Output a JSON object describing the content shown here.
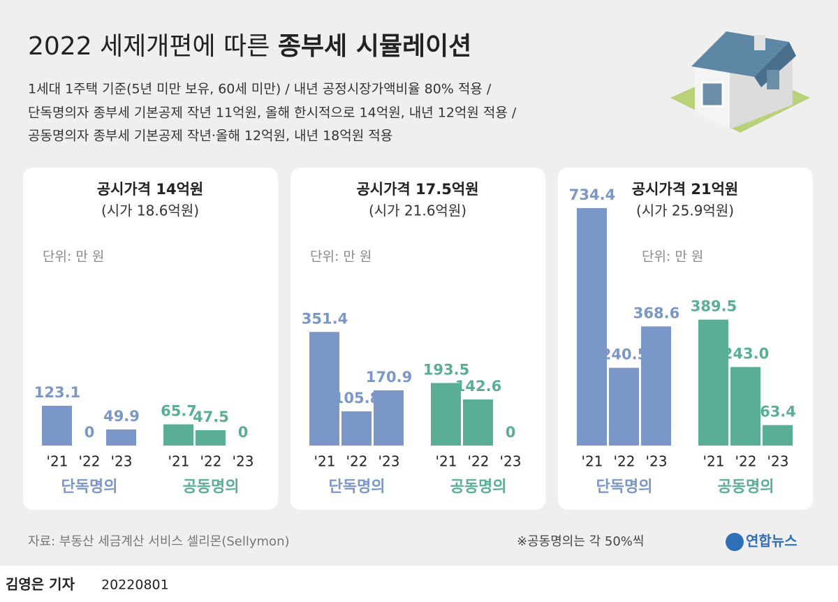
{
  "header": {
    "title_prefix": "2022 세제개편에 따른",
    "title_emphasis": "종부세 시뮬레이션",
    "notes": [
      "1세대 1주택 기준(5년 미만 보유, 60세 미만) / 내년 공정시장가액비율 80% 적용 /",
      "단독명의자 종부세 기본공제 작년 11억원, 올해 한시적으로 14억원, 내년 12억원 적용 /",
      "공동명의자 종부세 기본공제 작년·올해 12억원, 내년 18억원 적용"
    ]
  },
  "chart_data": [
    {
      "type": "bar",
      "title": "공시가격 14억원",
      "subtitle": "(시가 18.6억원)",
      "unit": "단위: 만 원",
      "categories": [
        "'21",
        "'22",
        "'23"
      ],
      "series": [
        {
          "name": "단독명의",
          "color": "#7b97c7",
          "values": [
            123.1,
            0,
            49.9
          ]
        },
        {
          "name": "공동명의",
          "color": "#5aae96",
          "values": [
            65.7,
            47.5,
            0
          ]
        }
      ]
    },
    {
      "type": "bar",
      "title": "공시가격 17.5억원",
      "subtitle": "(시가 21.6억원)",
      "unit": "단위: 만 원",
      "categories": [
        "'21",
        "'22",
        "'23"
      ],
      "series": [
        {
          "name": "단독명의",
          "color": "#7b97c7",
          "values": [
            351.4,
            105.8,
            170.9
          ]
        },
        {
          "name": "공동명의",
          "color": "#5aae96",
          "values": [
            193.5,
            142.6,
            0
          ]
        }
      ]
    },
    {
      "type": "bar",
      "title": "공시가격 21억원",
      "subtitle": "(시가 25.9억원)",
      "unit": "단위: 만 원",
      "categories": [
        "'21",
        "'22",
        "'23"
      ],
      "series": [
        {
          "name": "단독명의",
          "color": "#7b97c7",
          "values": [
            734.4,
            240.5,
            368.6
          ]
        },
        {
          "name": "공동명의",
          "color": "#5aae96",
          "values": [
            389.5,
            243,
            63.4
          ],
          "value_labels": [
            "389.5",
            "243.0",
            "63.4"
          ]
        }
      ]
    }
  ],
  "footer": {
    "source": "자료: 부동산 세금계산 서비스 셀리몬(Sellymon)",
    "note": "※공동명의는 각 50%씩",
    "logo": "연합뉴스",
    "byline": "김영은 기자",
    "date": "20220801"
  }
}
